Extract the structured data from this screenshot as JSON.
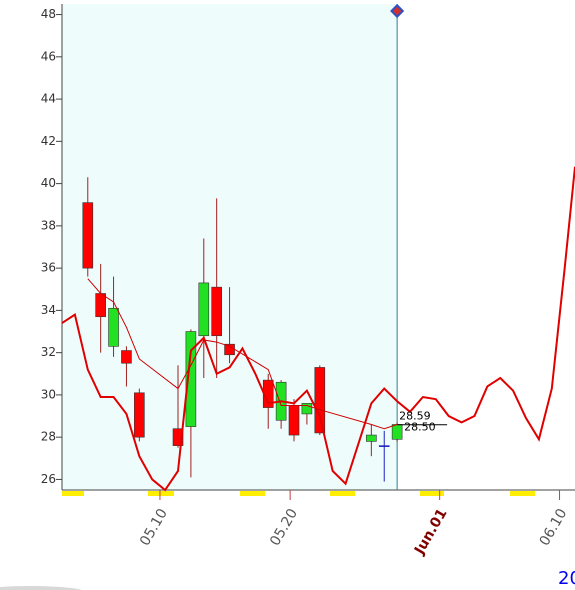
{
  "chart_data": {
    "type": "candlestick",
    "x": [
      2,
      3,
      4,
      5,
      6,
      9,
      10,
      11,
      12,
      13,
      16,
      17,
      18,
      19,
      20,
      24,
      25,
      26
    ],
    "open": [
      39.1,
      34.8,
      32.3,
      32.1,
      30.1,
      28.4,
      28.5,
      32.8,
      35.1,
      32.4,
      30.7,
      28.8,
      29.5,
      29.1,
      31.3,
      27.8,
      27.6,
      27.9
    ],
    "high": [
      40.3,
      36.2,
      35.6,
      32.3,
      30.3,
      31.4,
      33.1,
      37.4,
      39.3,
      35.1,
      31.0,
      30.7,
      29.8,
      29.6,
      31.4,
      28.6,
      28.3,
      28.7
    ],
    "low": [
      35.6,
      32.0,
      31.8,
      30.4,
      27.8,
      27.5,
      26.1,
      30.8,
      30.8,
      31.5,
      28.4,
      28.4,
      27.8,
      28.6,
      28.1,
      27.1,
      25.9,
      27.8
    ],
    "close": [
      36.0,
      33.7,
      34.1,
      31.5,
      28.0,
      27.6,
      33.0,
      35.3,
      32.8,
      31.9,
      29.4,
      30.6,
      28.1,
      29.6,
      28.2,
      28.1,
      27.6,
      28.6
    ],
    "up_color": "#22e022",
    "down_color": "#ff0000",
    "doji_color": "#2020c0",
    "lines": [
      {
        "color": "#e00000",
        "width": 2,
        "x": [
          0,
          1,
          2,
          3,
          4,
          5,
          6,
          7,
          8,
          9,
          10,
          11,
          12,
          13,
          14,
          15,
          16,
          17,
          18,
          19,
          20,
          21,
          22,
          23,
          24,
          25,
          26,
          27,
          28,
          29,
          30,
          31,
          32,
          33,
          34,
          35,
          36,
          37,
          38,
          39,
          39.8
        ],
        "values": [
          33.4,
          33.8,
          31.2,
          29.9,
          29.9,
          29.1,
          27.1,
          26.0,
          25.5,
          26.4,
          32.1,
          32.7,
          31.0,
          31.3,
          32.2,
          31.0,
          29.6,
          29.7,
          29.6,
          30.2,
          29.0,
          26.4,
          25.8,
          27.7,
          29.6,
          30.3,
          29.7,
          29.2,
          29.9,
          29.8,
          29.0,
          28.7,
          29.0,
          30.4,
          30.8,
          30.2,
          28.9,
          27.9,
          30.3,
          36.0,
          40.8
        ]
      },
      {
        "color": "#d00000",
        "width": 1,
        "x": [
          2,
          3,
          4,
          5,
          6,
          9,
          10,
          11,
          12,
          13,
          16,
          17,
          18,
          19,
          20,
          24,
          25,
          26
        ],
        "values": [
          35.5,
          34.8,
          34.4,
          33.2,
          31.7,
          30.3,
          31.4,
          32.6,
          32.5,
          32.3,
          31.2,
          29.5,
          29.5,
          29.5,
          29.3,
          28.6,
          28.4,
          28.6
        ]
      }
    ],
    "price_tags": [
      28.59,
      {
        "value": 28.5,
        "label": "28.50"
      }
    ],
    "highlight_until": 26,
    "xlim": [
      0,
      39.8
    ],
    "xticks": [
      {
        "value": 7.6,
        "label": "05.10"
      },
      {
        "value": 17.7,
        "label": "05.20"
      },
      {
        "value": 29.3,
        "label": "Jun.01"
      },
      {
        "value": 38.6,
        "label": "06.10"
      }
    ],
    "highlight_xtick": 2,
    "ylim": [
      25.5,
      48.5
    ],
    "yticks": [
      26,
      28,
      30,
      32,
      34,
      36,
      38,
      40,
      42,
      44,
      46,
      48
    ],
    "footer": "20"
  }
}
